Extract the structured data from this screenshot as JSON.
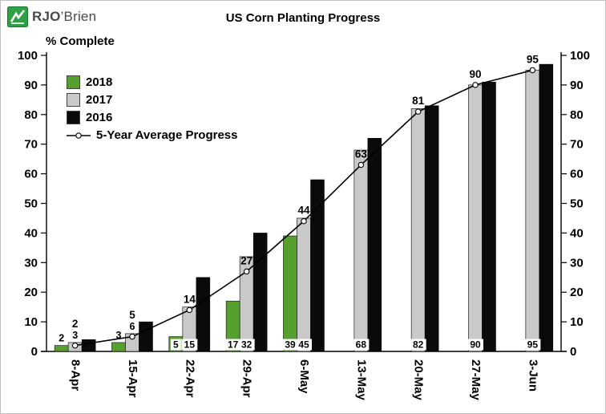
{
  "header": {
    "logo": {
      "brand": "RJO",
      "brand_suffix": "’Brien"
    },
    "title": "US Corn Planting Progress"
  },
  "chart_data": {
    "type": "bar",
    "title": "US Corn Planting Progress",
    "ylabel": "% Complete",
    "ylim": [
      0,
      100
    ],
    "ytick_step": 10,
    "grid": false,
    "dual_y_axis": true,
    "legend_position": "top-left-inside",
    "categories": [
      "8-Apr",
      "15-Apr",
      "22-Apr",
      "29-Apr",
      "6-May",
      "13-May",
      "20-May",
      "27-May",
      "3-Jun"
    ],
    "series": [
      {
        "name": "2018",
        "type": "bar",
        "color": "#56a02e",
        "values": [
          2,
          3,
          5,
          17,
          39,
          null,
          null,
          null,
          null
        ],
        "data_labels": true
      },
      {
        "name": "2017",
        "type": "bar",
        "color": "#c9c9c9",
        "values": [
          3,
          6,
          15,
          32,
          45,
          68,
          82,
          90,
          95
        ],
        "data_labels": true
      },
      {
        "name": "2016",
        "type": "bar",
        "color": "#0a0a0a",
        "values": [
          4,
          10,
          25,
          40,
          58,
          72,
          83,
          91,
          97
        ],
        "data_labels": false
      },
      {
        "name": "5-Year Average Progress",
        "type": "line",
        "color": "#000000",
        "marker": "circle",
        "values": [
          2,
          5,
          14,
          27,
          44,
          63,
          81,
          90,
          95
        ],
        "data_labels": true
      }
    ]
  }
}
